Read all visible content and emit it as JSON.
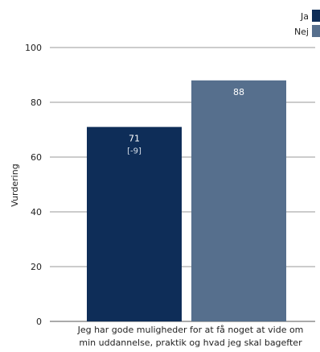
{
  "chart_data": {
    "type": "bar",
    "title": "",
    "ylabel": "Vurdering",
    "ylim": [
      0,
      100
    ],
    "yticks": [
      0,
      20,
      40,
      60,
      80,
      100
    ],
    "grid": true,
    "legend_position": "top-right",
    "categories": [
      "Jeg har gode muligheder for at få noget at vide om min uddannelse, praktik og hvad jeg skal bagefter"
    ],
    "category_lines": [
      "Jeg har gode muligheder for at få noget at vide om",
      "min uddannelse, praktik og hvad jeg skal bagefter"
    ],
    "series": [
      {
        "name": "Ja",
        "color": "#0e2d58",
        "values": [
          71
        ],
        "labels": [
          "71"
        ],
        "sublabels": [
          "[-9]"
        ]
      },
      {
        "name": "Nej",
        "color": "#566f8d",
        "values": [
          88
        ],
        "labels": [
          "88"
        ],
        "sublabels": [
          ""
        ]
      }
    ]
  }
}
